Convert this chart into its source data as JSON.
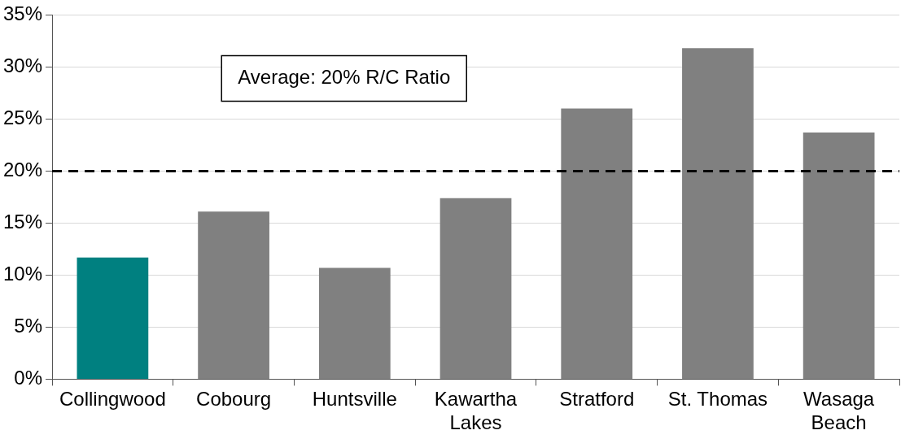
{
  "chart_data": {
    "type": "bar",
    "categories": [
      "Collingwood",
      "Cobourg",
      "Huntsville",
      "Kawartha Lakes",
      "Stratford",
      "St. Thomas",
      "Wasaga Beach"
    ],
    "values": [
      11.7,
      16.1,
      10.7,
      17.4,
      26.0,
      31.8,
      23.7
    ],
    "colors": [
      "#008080",
      "#808080",
      "#808080",
      "#808080",
      "#808080",
      "#808080",
      "#808080"
    ],
    "ylim": [
      0,
      35
    ],
    "yticks": [
      {
        "value": 0,
        "label": "0%"
      },
      {
        "value": 5,
        "label": "5%"
      },
      {
        "value": 10,
        "label": "10%"
      },
      {
        "value": 15,
        "label": "15%"
      },
      {
        "value": 20,
        "label": "20%"
      },
      {
        "value": 25,
        "label": "25%"
      },
      {
        "value": 30,
        "label": "30%"
      },
      {
        "value": 35,
        "label": "35%"
      }
    ],
    "grid": "y",
    "legend": false,
    "ref_lines": [
      {
        "axis": "y",
        "value": 20,
        "label": "Average: 20% R/C Ratio",
        "color": "#000000",
        "line_style": "dashed"
      }
    ]
  }
}
